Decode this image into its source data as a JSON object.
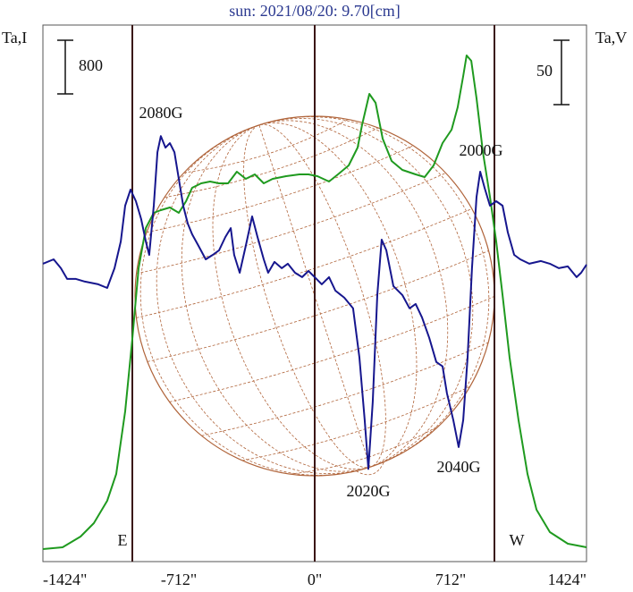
{
  "chart_data": {
    "type": "line",
    "title": "sun: 2021/08/20: 9.70[cm]",
    "y_label": "Ta,I",
    "y2_label": "Ta,V",
    "xlim": [
      -1424,
      1424
    ],
    "xticks": [
      {
        "value": -1424,
        "label": "-1424\""
      },
      {
        "value": -712,
        "label": "-712\""
      },
      {
        "value": 0,
        "label": "0\""
      },
      {
        "value": 712,
        "label": "712\""
      },
      {
        "value": 1424,
        "label": "1424\""
      }
    ],
    "ylim": [
      0,
      8000
    ],
    "y2lim": [
      -228,
      189
    ],
    "scale_bars": [
      {
        "value": 800
      },
      {
        "value": 50,
        "axis": "y2"
      }
    ],
    "annotations": [
      "2080G",
      "2000G",
      "2020G",
      "2040G",
      "E",
      "W"
    ],
    "series": [
      {
        "color": "#1f9a1f",
        "x": [
          -1424,
          -1321,
          -1227,
          -1157,
          -1087,
          -1040,
          -993,
          -956,
          -923,
          -885,
          -843,
          -806,
          -759,
          -712,
          -674,
          -642,
          -595,
          -548,
          -501,
          -454,
          -408,
          -361,
          -314,
          -267,
          -220,
          -150,
          -80,
          -33,
          14,
          75,
          122,
          178,
          225,
          248,
          286,
          319,
          356,
          403,
          459,
          529,
          576,
          623,
          670,
          717,
          749,
          778,
          796,
          820,
          848,
          881,
          918,
          951,
          984,
          1021,
          1068,
          1115,
          1162,
          1232,
          1326,
          1424
        ],
        "values": [
          187,
          213,
          373,
          573,
          907,
          1307,
          2240,
          3307,
          4373,
          4973,
          5200,
          5240,
          5280,
          5200,
          5373,
          5573,
          5640,
          5667,
          5640,
          5640,
          5813,
          5707,
          5773,
          5640,
          5707,
          5747,
          5773,
          5773,
          5747,
          5667,
          5773,
          5907,
          6173,
          6507,
          6973,
          6840,
          6307,
          5973,
          5840,
          5773,
          5733,
          5907,
          6240,
          6440,
          6773,
          7240,
          7547,
          7467,
          6907,
          6107,
          5440,
          4773,
          3973,
          3040,
          2107,
          1307,
          773,
          440,
          267,
          213
        ]
      },
      {
        "color": "#16168e",
        "axis": "y2",
        "x": [
          -1424,
          -1368,
          -1330,
          -1297,
          -1251,
          -1204,
          -1134,
          -1087,
          -1049,
          -1016,
          -993,
          -965,
          -937,
          -909,
          -885,
          -867,
          -843,
          -824,
          -806,
          -782,
          -759,
          -735,
          -712,
          -689,
          -665,
          -642,
          -609,
          -571,
          -534,
          -501,
          -468,
          -440,
          -422,
          -393,
          -361,
          -328,
          -300,
          -267,
          -244,
          -211,
          -173,
          -141,
          -103,
          -66,
          -33,
          0,
          37,
          75,
          108,
          155,
          201,
          234,
          262,
          281,
          304,
          328,
          351,
          375,
          412,
          459,
          497,
          529,
          562,
          600,
          637,
          670,
          693,
          726,
          754,
          778,
          801,
          824,
          848,
          867,
          890,
          918,
          951,
          984,
          1012,
          1045,
          1077,
          1124,
          1185,
          1232,
          1279,
          1326,
          1372,
          1396,
          1424
        ],
        "values": [
          3.5,
          6.9,
          0,
          -8.3,
          -8.3,
          -10.4,
          -12.5,
          -15.3,
          0,
          20.8,
          48.6,
          61.1,
          52.1,
          38.2,
          20.8,
          10.4,
          48.6,
          90.2,
          102.7,
          93.7,
          97.2,
          90.2,
          69.4,
          48.6,
          34.7,
          26.4,
          17.4,
          6.9,
          10.4,
          13.9,
          24.3,
          31.2,
          10.4,
          -3.5,
          17.4,
          40.3,
          24.3,
          6.9,
          -3.5,
          4.9,
          0,
          3.5,
          -3.5,
          -6.9,
          -2.1,
          -6.9,
          -12.5,
          -6.9,
          -17.4,
          -22.9,
          -31.2,
          -69.4,
          -118,
          -156,
          -104,
          -20.8,
          22.2,
          13.9,
          -13.9,
          -20.8,
          -31.2,
          -27.8,
          -38.2,
          -54.1,
          -72.9,
          -76.3,
          -97.2,
          -118,
          -139,
          -118,
          -69.4,
          0,
          55.5,
          75,
          62.5,
          48.6,
          52.1,
          48.6,
          27.8,
          10.4,
          6.9,
          3.5,
          5.6,
          3.5,
          0,
          1.4,
          -6.9,
          -3.5,
          2.8
        ]
      }
    ]
  }
}
